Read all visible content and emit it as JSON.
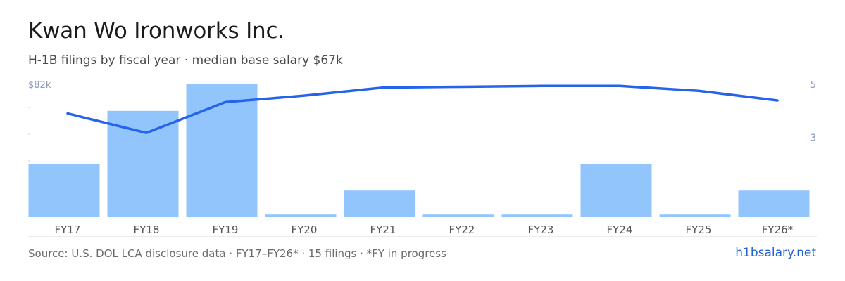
{
  "header": {
    "title": "Kwan Wo Ironworks Inc.",
    "subtitle": "H-1B filings by fiscal year · median base salary $67k"
  },
  "footer": {
    "source": "Source: U.S. DOL LCA disclosure data · FY17–FY26* · 15 filings · *FY in progress",
    "brand": "h1bsalary.net"
  },
  "colors": {
    "bar": "#93c5fd",
    "line": "#2563eb",
    "axis_text": "#8a9bbb",
    "baseline": "#d9d9d9"
  },
  "chart_data": {
    "type": "bar",
    "categories": [
      "FY17",
      "FY18",
      "FY19",
      "FY20",
      "FY21",
      "FY22",
      "FY23",
      "FY24",
      "FY25",
      "FY26*"
    ],
    "series": [
      {
        "type": "bar",
        "axis": "right",
        "values": [
          2,
          4,
          5,
          0.1,
          1,
          0.1,
          0.1,
          2,
          0.1,
          1
        ]
      },
      {
        "type": "line",
        "axis": "left",
        "values": [
          64,
          52,
          71,
          75,
          80,
          80.5,
          81,
          81,
          78,
          72
        ]
      }
    ],
    "y_left": {
      "ylim": [
        0,
        82
      ],
      "tick_labels": [
        {
          "value": 82,
          "label": "$82k"
        }
      ]
    },
    "y_right": {
      "ylim": [
        0,
        5
      ],
      "tick_labels": [
        {
          "value": 5,
          "label": "5"
        },
        {
          "value": 3,
          "label": "3"
        }
      ]
    },
    "grid": false,
    "legend": "none"
  }
}
